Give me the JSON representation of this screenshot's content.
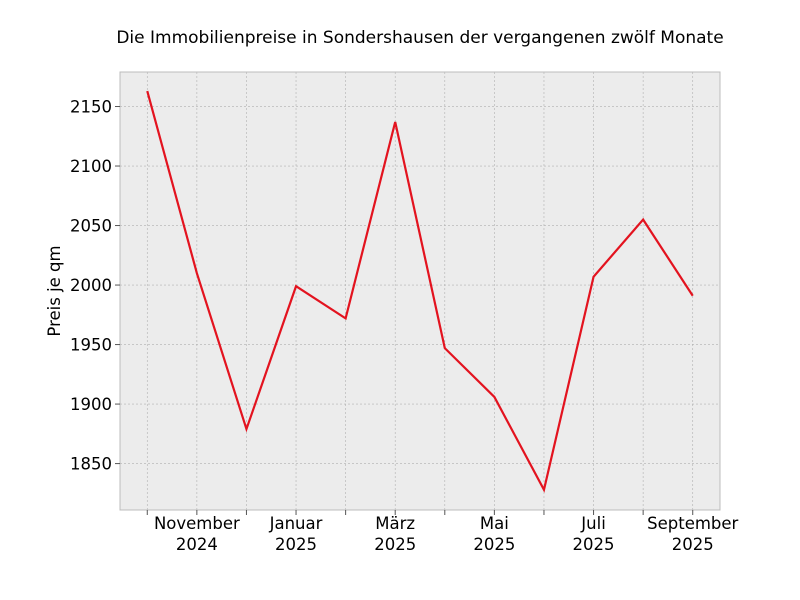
{
  "chart_data": {
    "type": "line",
    "title": "Die Immobilienpreise in Sondershausen der vergangenen zwölf Monate",
    "xlabel": "",
    "ylabel": "Preis je qm",
    "x": [
      "2024-10",
      "2024-11",
      "2024-12",
      "2025-01",
      "2025-02",
      "2025-03",
      "2025-04",
      "2025-05",
      "2025-06",
      "2025-07",
      "2025-08",
      "2025-09"
    ],
    "xlim": [
      -0.55,
      11.55
    ],
    "x_tick_labels": [
      {
        "index": 1,
        "line1": "November",
        "line2": "2024"
      },
      {
        "index": 3,
        "line1": "Januar",
        "line2": "2025"
      },
      {
        "index": 5,
        "line1": "März",
        "line2": "2025"
      },
      {
        "index": 7,
        "line1": "Mai",
        "line2": "2025"
      },
      {
        "index": 9,
        "line1": "Juli",
        "line2": "2025"
      },
      {
        "index": 11,
        "line1": "September",
        "line2": "2025"
      }
    ],
    "series": [
      {
        "values": [
          2163,
          2010,
          1879,
          1999,
          1972,
          2137,
          1947,
          1906,
          1828,
          2007,
          2055,
          1991
        ],
        "color": "#e3131f"
      }
    ],
    "ylim": [
      1811,
      2179
    ],
    "yticks": [
      1850,
      1900,
      1950,
      2000,
      2050,
      2100,
      2150
    ],
    "grid": true,
    "legend": "none",
    "colors": {
      "plot_background": "#ececec",
      "grid": "#b0b0b0",
      "line": "#e3131f"
    }
  }
}
